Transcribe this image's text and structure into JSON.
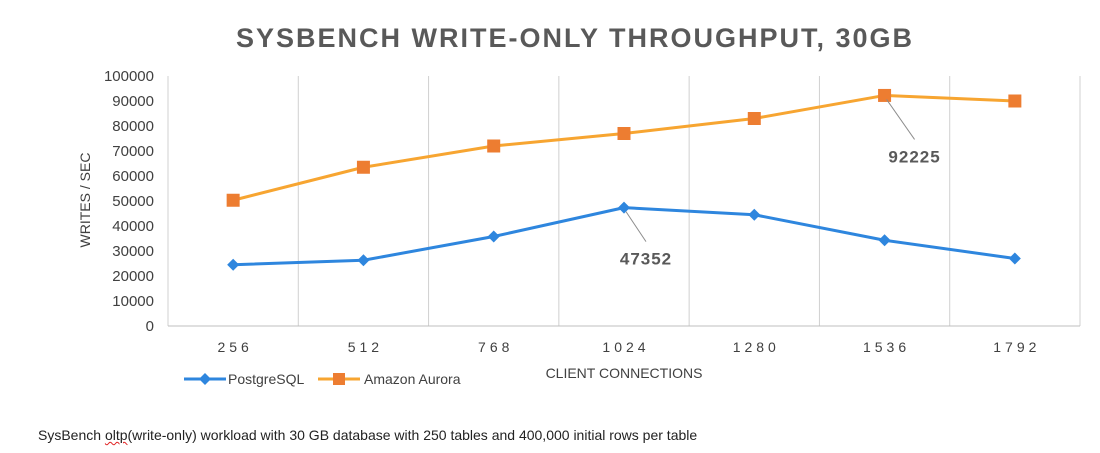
{
  "chart_data": {
    "type": "line",
    "title": "SYSBENCH WRITE-ONLY THROUGHPUT, 30GB",
    "xlabel": "CLIENT CONNECTIONS",
    "ylabel": "WRITES / SEC",
    "categories": [
      "256",
      "512",
      "768",
      "1024",
      "1280",
      "1536",
      "1792"
    ],
    "ylim": [
      0,
      100000
    ],
    "yticks": [
      "0",
      "10000",
      "20000",
      "30000",
      "40000",
      "50000",
      "60000",
      "70000",
      "80000",
      "90000",
      "100000"
    ],
    "grid": "vertical",
    "legend_position": "bottom-left",
    "series": [
      {
        "name": "PostgreSQL",
        "color": "#2E86DE",
        "marker": "diamond",
        "values": [
          24500,
          26300,
          35800,
          47352,
          44500,
          34300,
          27000
        ]
      },
      {
        "name": "Amazon Aurora",
        "color": "#F7A531",
        "marker_color": "#ED7D31",
        "marker": "square",
        "values": [
          50300,
          63500,
          72000,
          77000,
          83000,
          92225,
          90000
        ]
      }
    ],
    "annotations": [
      {
        "text": "47352",
        "series": "PostgreSQL",
        "category": "1024"
      },
      {
        "text": "92225",
        "series": "Amazon Aurora",
        "category": "1536"
      }
    ]
  },
  "caption": {
    "prefix": "SysBench ",
    "flagged_word": "oltp",
    "suffix": "(write-only) workload with 30 GB database with 250 tables and 400,000 initial rows per table"
  }
}
